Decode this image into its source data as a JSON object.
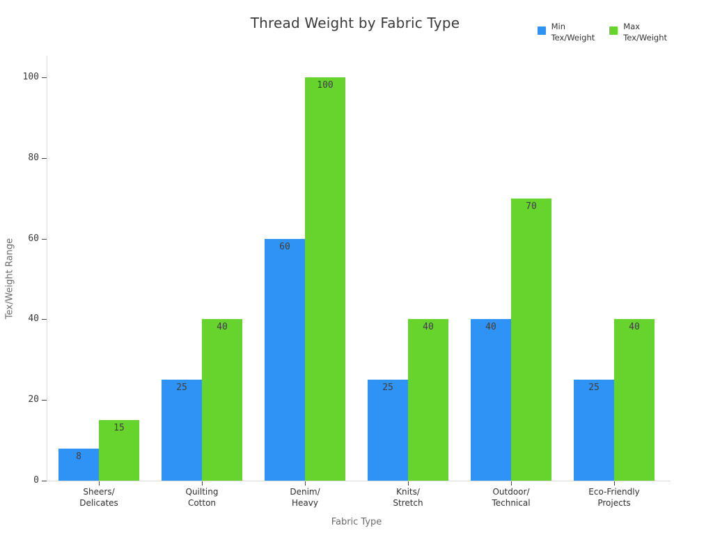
{
  "title": "Thread Weight by Fabric Type",
  "legend": {
    "items": [
      {
        "label": "Min Tex/Weight",
        "label_lines": "Min\nTex/Weight",
        "color": "#2F93F5"
      },
      {
        "label": "Max Tex/Weight",
        "label_lines": "Max\nTex/Weight",
        "color": "#66D42D"
      }
    ]
  },
  "chart_data": {
    "type": "bar",
    "title": "Thread Weight by Fabric Type",
    "xlabel": "Fabric Type",
    "ylabel": "Tex/Weight Range",
    "categories": [
      "Sheers/Delicates",
      "Quilting Cotton",
      "Denim/Heavy",
      "Knits/Stretch",
      "Outdoor/Technical",
      "Eco-Friendly Projects"
    ],
    "category_label_lines": [
      "Sheers/\nDelicates",
      "Quilting\nCotton",
      "Denim/\nHeavy",
      "Knits/\nStretch",
      "Outdoor/\nTechnical",
      "Eco-Friendly\nProjects"
    ],
    "series": [
      {
        "name": "Min Tex/Weight",
        "color": "#2F93F5",
        "values": [
          8,
          25,
          60,
          25,
          40,
          25
        ]
      },
      {
        "name": "Max Tex/Weight",
        "color": "#66D42D",
        "values": [
          15,
          40,
          100,
          40,
          70,
          40
        ]
      }
    ],
    "ylim": [
      0,
      100
    ],
    "yticks": [
      0,
      20,
      40,
      60,
      80,
      100
    ],
    "grid": false,
    "legend_position": "top-right",
    "value_labels": "inside-top"
  },
  "colors": {
    "min_series": "#2F93F5",
    "max_series": "#66D42D",
    "axis_line": "#D9D9D9",
    "tick_mark": "#444444",
    "tick_label": "#383838",
    "category_label": "#2E2E2E",
    "axis_title": "#6B6B6B",
    "title": "#3A3A3A",
    "value_label": "#3E3E3E",
    "background": "#FFFFFF"
  }
}
